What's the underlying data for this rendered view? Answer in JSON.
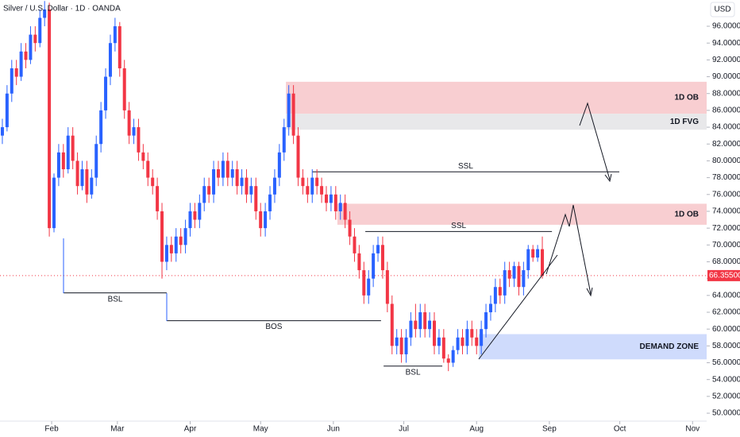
{
  "chart_data": {
    "type": "candlestick",
    "title": "Silver / U.S. Dollar · 1D · OANDA",
    "y_axis_label": "USD",
    "up_color": "#2962ff",
    "down_color": "#f23645",
    "xlim": [
      10,
      311
    ],
    "ylim": [
      49.06,
      99.12
    ],
    "xticks": [
      {
        "value": 32,
        "label": "Feb"
      },
      {
        "value": 60,
        "label": "Mar"
      },
      {
        "value": 91,
        "label": "Apr"
      },
      {
        "value": 121,
        "label": "May"
      },
      {
        "value": 152,
        "label": "Jun"
      },
      {
        "value": 182,
        "label": "Jul"
      },
      {
        "value": 213,
        "label": "Aug"
      },
      {
        "value": 244,
        "label": "Sep"
      },
      {
        "value": 274,
        "label": "Oct"
      },
      {
        "value": 305,
        "label": "Nov"
      }
    ],
    "yticks": [
      {
        "value": 50,
        "label": "50.00000"
      },
      {
        "value": 52,
        "label": "52.00000"
      },
      {
        "value": 54,
        "label": "54.00000"
      },
      {
        "value": 56,
        "label": "56.00000"
      },
      {
        "value": 58,
        "label": "58.00000"
      },
      {
        "value": 60,
        "label": "60.00000"
      },
      {
        "value": 62,
        "label": "62.00000"
      },
      {
        "value": 64,
        "label": "64.00000"
      },
      {
        "value": 66,
        "label": "66.00000"
      },
      {
        "value": 68,
        "label": "68.00000"
      },
      {
        "value": 70,
        "label": "70.00000"
      },
      {
        "value": 72,
        "label": "72.00000"
      },
      {
        "value": 74,
        "label": "74.00000"
      },
      {
        "value": 76,
        "label": "76.00000"
      },
      {
        "value": 78,
        "label": "78.00000"
      },
      {
        "value": 80,
        "label": "80.00000"
      },
      {
        "value": 82,
        "label": "82.00000"
      },
      {
        "value": 84,
        "label": "84.00000"
      },
      {
        "value": 86,
        "label": "86.00000"
      },
      {
        "value": 88,
        "label": "88.00000"
      },
      {
        "value": 90,
        "label": "90.00000"
      },
      {
        "value": 92,
        "label": "92.00000"
      },
      {
        "value": 94,
        "label": "94.00000"
      },
      {
        "value": 96,
        "label": "96.00000"
      }
    ],
    "last_price": {
      "value": 66.355,
      "label": "66.35500"
    },
    "x": [
      11,
      13,
      15,
      17,
      19,
      21,
      23,
      25,
      27,
      29,
      31,
      33,
      35,
      37,
      39,
      41,
      43,
      45,
      47,
      49,
      51,
      53,
      55,
      57,
      59,
      61,
      63,
      65,
      67,
      69,
      71,
      73,
      75,
      77,
      79,
      81,
      83,
      85,
      87,
      89,
      91,
      93,
      95,
      97,
      99,
      101,
      103,
      105,
      107,
      109,
      111,
      113,
      115,
      117,
      119,
      121,
      123,
      125,
      127,
      129,
      131,
      133,
      135,
      137,
      139,
      141,
      143,
      145,
      147,
      149,
      151,
      153,
      155,
      157,
      159,
      161,
      163,
      165,
      167,
      169,
      171,
      173,
      175,
      177,
      179,
      181,
      183,
      185,
      187,
      189,
      191,
      193,
      195,
      197,
      199,
      201,
      203,
      205,
      207,
      209,
      211,
      213,
      215,
      217,
      219,
      221,
      223,
      225,
      227,
      229,
      231,
      233,
      235,
      237,
      239,
      241
    ],
    "ohlc": [
      [
        83,
        85,
        82,
        84
      ],
      [
        84,
        89,
        83.5,
        88
      ],
      [
        88,
        92,
        87,
        91
      ],
      [
        91,
        92,
        89,
        90
      ],
      [
        90,
        94,
        89.5,
        93
      ],
      [
        93,
        94,
        91,
        92
      ],
      [
        92,
        96,
        91.5,
        95
      ],
      [
        95,
        96,
        93,
        94
      ],
      [
        94,
        98,
        93.5,
        97
      ],
      [
        97,
        99,
        96,
        98
      ],
      [
        98,
        98.8,
        71,
        72
      ],
      [
        72,
        78.5,
        71.5,
        78
      ],
      [
        78,
        82,
        77,
        81
      ],
      [
        81,
        82,
        78,
        79
      ],
      [
        79,
        84,
        78.5,
        83
      ],
      [
        83,
        84,
        79,
        80
      ],
      [
        80,
        81,
        76,
        77
      ],
      [
        77,
        80,
        76.5,
        79
      ],
      [
        79,
        80,
        75,
        76
      ],
      [
        76,
        79,
        75.5,
        78
      ],
      [
        78,
        83,
        77,
        82
      ],
      [
        82,
        87,
        81,
        86
      ],
      [
        86,
        91,
        85,
        90
      ],
      [
        90,
        95,
        89,
        94
      ],
      [
        94,
        97,
        93,
        96
      ],
      [
        96,
        96.5,
        90,
        91
      ],
      [
        91,
        92,
        85,
        86
      ],
      [
        86,
        87,
        82,
        83
      ],
      [
        83,
        85,
        82,
        84
      ],
      [
        84,
        85,
        80,
        81
      ],
      [
        81,
        82,
        79,
        80
      ],
      [
        80,
        81,
        77,
        78
      ],
      [
        78,
        79,
        76,
        77
      ],
      [
        77,
        78,
        73,
        74
      ],
      [
        74,
        75,
        66,
        68
      ],
      [
        68,
        71,
        67,
        70
      ],
      [
        70,
        71,
        68,
        69
      ],
      [
        69,
        72,
        68,
        71
      ],
      [
        71,
        72,
        69,
        70
      ],
      [
        70,
        73,
        69,
        72
      ],
      [
        72,
        75,
        71,
        74
      ],
      [
        74,
        75,
        72,
        73
      ],
      [
        73,
        76,
        72,
        75
      ],
      [
        75,
        78,
        74,
        77
      ],
      [
        77,
        78,
        75,
        76
      ],
      [
        76,
        80,
        75,
        79
      ],
      [
        79,
        80,
        77,
        78
      ],
      [
        78,
        81,
        77,
        80
      ],
      [
        80,
        81,
        77,
        78
      ],
      [
        78,
        80,
        77,
        79
      ],
      [
        79,
        80,
        76,
        77
      ],
      [
        77,
        79,
        76,
        78
      ],
      [
        78,
        79,
        75,
        76
      ],
      [
        76,
        78,
        75,
        77
      ],
      [
        77,
        78,
        73,
        74
      ],
      [
        74,
        75,
        71,
        72
      ],
      [
        72,
        75,
        71,
        74
      ],
      [
        74,
        77,
        73,
        76
      ],
      [
        76,
        79,
        75,
        78
      ],
      [
        78,
        82,
        77,
        81
      ],
      [
        81,
        85,
        80,
        84
      ],
      [
        84,
        89,
        83,
        88
      ],
      [
        88,
        89,
        82,
        83
      ],
      [
        83,
        84,
        77,
        78
      ],
      [
        78,
        79,
        76,
        77
      ],
      [
        77,
        78,
        75,
        76
      ],
      [
        76,
        79,
        75,
        78
      ],
      [
        78,
        79,
        76,
        77
      ],
      [
        77,
        78,
        75,
        76
      ],
      [
        76,
        77,
        74,
        75
      ],
      [
        75,
        77,
        74,
        76
      ],
      [
        76,
        77,
        73,
        74
      ],
      [
        74,
        76,
        73,
        75
      ],
      [
        75,
        76,
        72,
        73
      ],
      [
        73,
        74,
        70,
        71
      ],
      [
        71,
        72,
        68,
        69
      ],
      [
        69,
        70,
        66,
        67
      ],
      [
        67,
        68,
        63,
        64
      ],
      [
        64,
        67,
        63,
        66
      ],
      [
        66,
        70,
        65,
        69
      ],
      [
        69,
        71,
        68,
        70
      ],
      [
        70,
        71,
        66,
        67
      ],
      [
        67,
        68,
        62,
        63
      ],
      [
        63,
        64,
        57,
        58
      ],
      [
        58,
        60,
        57,
        59
      ],
      [
        59,
        60,
        56,
        57
      ],
      [
        57,
        60,
        56,
        59
      ],
      [
        59,
        62,
        58,
        61
      ],
      [
        61,
        63,
        59,
        60
      ],
      [
        60,
        63,
        59,
        62
      ],
      [
        62,
        63,
        59,
        60
      ],
      [
        60,
        62,
        59,
        61
      ],
      [
        61,
        62,
        57,
        58
      ],
      [
        58,
        60,
        57,
        59
      ],
      [
        59,
        60,
        56,
        56.5
      ],
      [
        56.5,
        57,
        55,
        56
      ],
      [
        56,
        58,
        55.5,
        57.5
      ],
      [
        57.5,
        60,
        57,
        59
      ],
      [
        59,
        60,
        57,
        58
      ],
      [
        58,
        61,
        57,
        60
      ],
      [
        60,
        61,
        58,
        59
      ],
      [
        59,
        60,
        57,
        58
      ],
      [
        58,
        61,
        57,
        60
      ],
      [
        60,
        63,
        59,
        62
      ],
      [
        62,
        64,
        61,
        63
      ],
      [
        63,
        66,
        62,
        65
      ],
      [
        65,
        66,
        63,
        64
      ],
      [
        64,
        68,
        63,
        67
      ],
      [
        67,
        68,
        65,
        66
      ],
      [
        66,
        68,
        65,
        67.5
      ],
      [
        67.5,
        68,
        64,
        65
      ],
      [
        65,
        68,
        64,
        67
      ],
      [
        67,
        70,
        66,
        69.5
      ],
      [
        69.5,
        70,
        68,
        68.5
      ],
      [
        68.5,
        70,
        68,
        69.5
      ],
      [
        69.5,
        71,
        66,
        66.355
      ]
    ],
    "zones": [
      {
        "label": "1D OB",
        "y": [
          85.6,
          89.4
        ],
        "x": [
          131.8,
          311
        ],
        "color": "#f7c5c9"
      },
      {
        "label": "1D FVG",
        "y": [
          83.7,
          85.6
        ],
        "x": [
          131.8,
          311
        ],
        "color": "#e4e4e6"
      },
      {
        "label": "1D OB",
        "y": [
          72.4,
          74.9
        ],
        "x": [
          153.7,
          311
        ],
        "color": "#f7c5c9"
      },
      {
        "label": "DEMAND ZONE",
        "y": [
          56.4,
          59.4
        ],
        "x": [
          213.9,
          311
        ],
        "color": "#c7d5fb"
      }
    ],
    "levels": [
      {
        "label": "SSL",
        "y": 78.7,
        "x": [
          142.9,
          273.8
        ],
        "label_side": "above"
      },
      {
        "label": "SSL",
        "y": 71.6,
        "x": [
          165.6,
          245.1
        ],
        "label_side": "above"
      },
      {
        "label": "BSL",
        "y": 64.3,
        "x": [
          37.1,
          81.0
        ],
        "label_side": "below"
      },
      {
        "label": "BOS",
        "y": 61.0,
        "x": [
          81.0,
          172.3
        ],
        "label_side": "below"
      },
      {
        "label": "BSL",
        "y": 55.6,
        "x": [
          173.4,
          198.4
        ],
        "label_side": "below"
      }
    ]
  }
}
